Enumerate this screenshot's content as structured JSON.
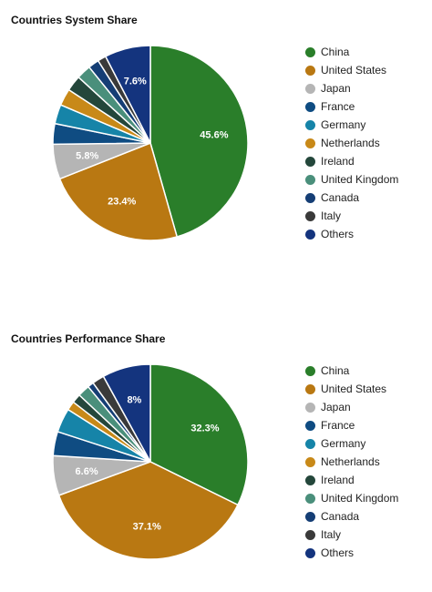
{
  "chart_data": [
    {
      "type": "pie",
      "title": "Countries System Share",
      "legend_position": "right",
      "slices": [
        {
          "name": "China",
          "value": 45.6,
          "color": "#2a7e2a",
          "label": "45.6%"
        },
        {
          "name": "United States",
          "value": 23.4,
          "color": "#b97812",
          "label": "23.4%"
        },
        {
          "name": "Japan",
          "value": 5.8,
          "color": "#b5b5b5",
          "label": "5.8%"
        },
        {
          "name": "France",
          "value": 3.4,
          "color": "#0f4c82",
          "label": ""
        },
        {
          "name": "Germany",
          "value": 3.2,
          "color": "#1684a8",
          "label": ""
        },
        {
          "name": "Netherlands",
          "value": 2.8,
          "color": "#c88918",
          "label": ""
        },
        {
          "name": "Ireland",
          "value": 2.6,
          "color": "#24473b",
          "label": ""
        },
        {
          "name": "United Kingdom",
          "value": 2.4,
          "color": "#4a8f7b",
          "label": ""
        },
        {
          "name": "Canada",
          "value": 1.8,
          "color": "#153e75",
          "label": ""
        },
        {
          "name": "Italy",
          "value": 1.4,
          "color": "#3a3a3a",
          "label": ""
        },
        {
          "name": "Others",
          "value": 7.6,
          "color": "#14347e",
          "label": "7.6%"
        }
      ]
    },
    {
      "type": "pie",
      "title": "Countries Performance Share",
      "legend_position": "right",
      "slices": [
        {
          "name": "China",
          "value": 32.3,
          "color": "#2a7e2a",
          "label": "32.3%"
        },
        {
          "name": "United States",
          "value": 37.1,
          "color": "#b97812",
          "label": "37.1%"
        },
        {
          "name": "Japan",
          "value": 6.6,
          "color": "#b5b5b5",
          "label": "6.6%"
        },
        {
          "name": "France",
          "value": 4.0,
          "color": "#0f4c82",
          "label": ""
        },
        {
          "name": "Germany",
          "value": 4.0,
          "color": "#1684a8",
          "label": ""
        },
        {
          "name": "Netherlands",
          "value": 1.5,
          "color": "#c88918",
          "label": ""
        },
        {
          "name": "Ireland",
          "value": 1.5,
          "color": "#24473b",
          "label": ""
        },
        {
          "name": "United Kingdom",
          "value": 2.0,
          "color": "#4a8f7b",
          "label": ""
        },
        {
          "name": "Canada",
          "value": 1.0,
          "color": "#153e75",
          "label": ""
        },
        {
          "name": "Italy",
          "value": 2.0,
          "color": "#3a3a3a",
          "label": ""
        },
        {
          "name": "Others",
          "value": 8.0,
          "color": "#14347e",
          "label": "8%"
        }
      ]
    }
  ]
}
